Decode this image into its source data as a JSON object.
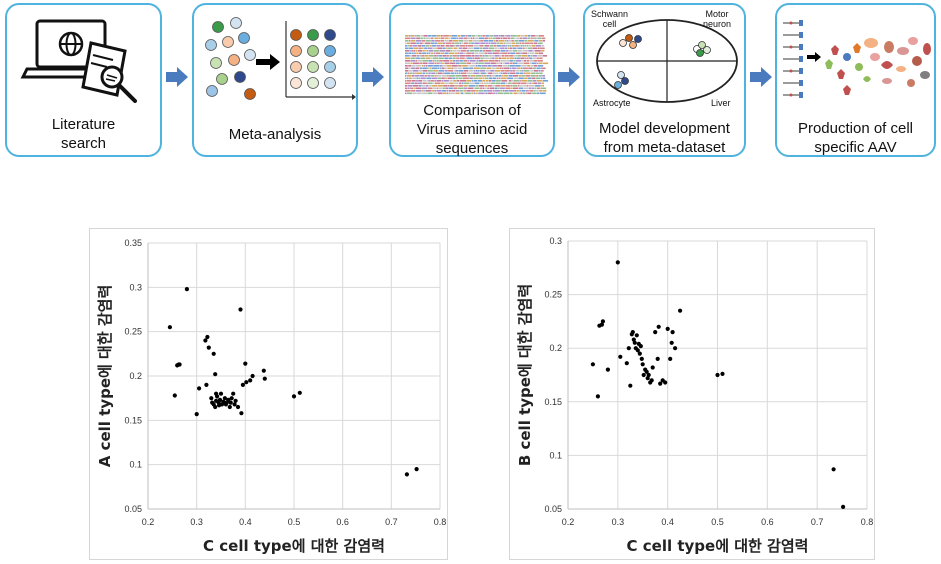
{
  "workflow": {
    "steps": [
      {
        "label": "Literature\nsearch"
      },
      {
        "label": "Meta-analysis"
      },
      {
        "label": "Comparison of\nVirus amino acid\nsequences"
      },
      {
        "label": "Model development\nfrom meta-dataset",
        "quadrants": {
          "top_left": "Schwann\ncell",
          "top_right": "Motor\nneuron",
          "bottom_left": "Astrocyte",
          "bottom_right": "Liver"
        }
      },
      {
        "label": "Production of cell\nspecific AAV"
      }
    ],
    "colors": {
      "border": "#4fb3e0",
      "arrow": "#4a7bbf"
    }
  },
  "chart_data": [
    {
      "type": "scatter",
      "title": "",
      "xlabel": "C cell type에 대한 감염력",
      "ylabel": "A cell type에 대한 감염력",
      "xlim": [
        0.2,
        0.8
      ],
      "ylim": [
        0.05,
        0.35
      ],
      "xticks": [
        "0.2",
        "0.3",
        "0.4",
        "0.5",
        "0.6",
        "0.7",
        "0.8"
      ],
      "yticks": [
        "0.05",
        "0.1",
        "0.15",
        "0.2",
        "0.25",
        "0.3",
        "0.35"
      ],
      "grid": true,
      "series": [
        {
          "values": [
            [
              0.245,
              0.255
            ],
            [
              0.255,
              0.178
            ],
            [
              0.26,
              0.212
            ],
            [
              0.263,
              0.213
            ],
            [
              0.265,
              0.213
            ],
            [
              0.28,
              0.298
            ],
            [
              0.3,
              0.157
            ],
            [
              0.305,
              0.186
            ],
            [
              0.318,
              0.24
            ],
            [
              0.322,
              0.244
            ],
            [
              0.325,
              0.232
            ],
            [
              0.32,
              0.19
            ],
            [
              0.335,
              0.225
            ],
            [
              0.338,
              0.202
            ],
            [
              0.34,
              0.18
            ],
            [
              0.33,
              0.175
            ],
            [
              0.332,
              0.17
            ],
            [
              0.335,
              0.168
            ],
            [
              0.338,
              0.165
            ],
            [
              0.34,
              0.172
            ],
            [
              0.342,
              0.177
            ],
            [
              0.345,
              0.17
            ],
            [
              0.346,
              0.167
            ],
            [
              0.348,
              0.173
            ],
            [
              0.35,
              0.18
            ],
            [
              0.352,
              0.168
            ],
            [
              0.355,
              0.171
            ],
            [
              0.358,
              0.175
            ],
            [
              0.36,
              0.168
            ],
            [
              0.362,
              0.17
            ],
            [
              0.365,
              0.173
            ],
            [
              0.368,
              0.165
            ],
            [
              0.37,
              0.17
            ],
            [
              0.372,
              0.175
            ],
            [
              0.375,
              0.18
            ],
            [
              0.378,
              0.168
            ],
            [
              0.38,
              0.172
            ],
            [
              0.385,
              0.165
            ],
            [
              0.39,
              0.275
            ],
            [
              0.392,
              0.158
            ],
            [
              0.395,
              0.19
            ],
            [
              0.4,
              0.214
            ],
            [
              0.402,
              0.193
            ],
            [
              0.41,
              0.195
            ],
            [
              0.415,
              0.2
            ],
            [
              0.438,
              0.206
            ],
            [
              0.44,
              0.197
            ],
            [
              0.5,
              0.177
            ],
            [
              0.512,
              0.181
            ],
            [
              0.732,
              0.089
            ],
            [
              0.752,
              0.095
            ]
          ]
        }
      ]
    },
    {
      "type": "scatter",
      "title": "",
      "xlabel": "C cell type에 대한 감염력",
      "ylabel": "B cell type에 대한 감염력",
      "xlim": [
        0.2,
        0.8
      ],
      "ylim": [
        0.05,
        0.3
      ],
      "xticks": [
        "0.2",
        "0.3",
        "0.4",
        "0.5",
        "0.6",
        "0.7",
        "0.8"
      ],
      "yticks": [
        "0.05",
        "0.1",
        "0.15",
        "0.2",
        "0.25",
        "0.3"
      ],
      "grid": true,
      "series": [
        {
          "values": [
            [
              0.25,
              0.185
            ],
            [
              0.26,
              0.155
            ],
            [
              0.263,
              0.221
            ],
            [
              0.268,
              0.222
            ],
            [
              0.27,
              0.225
            ],
            [
              0.28,
              0.18
            ],
            [
              0.3,
              0.28
            ],
            [
              0.305,
              0.192
            ],
            [
              0.318,
              0.186
            ],
            [
              0.322,
              0.2
            ],
            [
              0.325,
              0.165
            ],
            [
              0.328,
              0.213
            ],
            [
              0.33,
              0.215
            ],
            [
              0.332,
              0.208
            ],
            [
              0.334,
              0.205
            ],
            [
              0.336,
              0.2
            ],
            [
              0.338,
              0.212
            ],
            [
              0.34,
              0.198
            ],
            [
              0.342,
              0.204
            ],
            [
              0.344,
              0.195
            ],
            [
              0.346,
              0.202
            ],
            [
              0.348,
              0.19
            ],
            [
              0.35,
              0.185
            ],
            [
              0.352,
              0.175
            ],
            [
              0.355,
              0.18
            ],
            [
              0.358,
              0.178
            ],
            [
              0.36,
              0.172
            ],
            [
              0.362,
              0.175
            ],
            [
              0.365,
              0.168
            ],
            [
              0.368,
              0.17
            ],
            [
              0.37,
              0.182
            ],
            [
              0.375,
              0.215
            ],
            [
              0.38,
              0.19
            ],
            [
              0.382,
              0.22
            ],
            [
              0.385,
              0.167
            ],
            [
              0.39,
              0.17
            ],
            [
              0.395,
              0.168
            ],
            [
              0.4,
              0.218
            ],
            [
              0.405,
              0.19
            ],
            [
              0.408,
              0.205
            ],
            [
              0.41,
              0.215
            ],
            [
              0.415,
              0.2
            ],
            [
              0.425,
              0.235
            ],
            [
              0.5,
              0.175
            ],
            [
              0.51,
              0.176
            ],
            [
              0.733,
              0.087
            ],
            [
              0.752,
              0.052
            ]
          ]
        }
      ]
    }
  ]
}
